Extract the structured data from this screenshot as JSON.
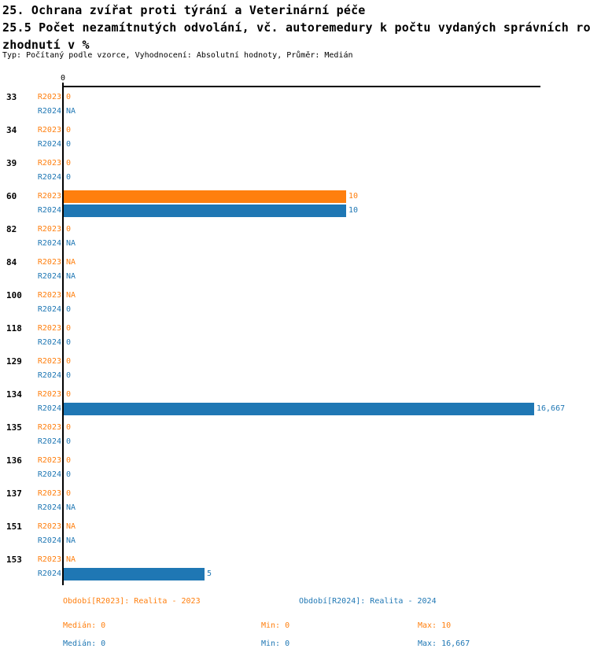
{
  "header": {
    "title_line1": "25. Ochrana zvířat proti týrání a Veterinární péče",
    "title_line2": "25.5 Počet nezamítnutých odvolání, vč. autoremedury k počtu vydaných správních ro",
    "title_line3": "zhodnutí v %",
    "meta": "Typ: Počítaný podle vzorce, Vyhodnocení: Absolutní hodnoty, Průměr: Medián"
  },
  "colors": {
    "r2023": "#ff7f0e",
    "r2024": "#1f77b4",
    "axis": "#000000"
  },
  "chart_data": {
    "type": "bar",
    "orientation": "horizontal",
    "title": "25.5 Počet nezamítnutých odvolání, vč. autoremedury k počtu vydaných správních rozhodnutí v %",
    "top_axis_tick_label": "0",
    "xlim": [
      0,
      16.9
    ],
    "grid": false,
    "categories": [
      "33",
      "34",
      "39",
      "60",
      "82",
      "84",
      "100",
      "118",
      "129",
      "134",
      "135",
      "136",
      "137",
      "151",
      "153"
    ],
    "series": [
      {
        "name": "R2023",
        "color": "#ff7f0e",
        "values": [
          0,
          0,
          0,
          10,
          0,
          null,
          null,
          0,
          0,
          0,
          0,
          0,
          0,
          null,
          null
        ],
        "labels": [
          "0",
          "0",
          "0",
          "10",
          "0",
          "NA",
          "NA",
          "0",
          "0",
          "0",
          "0",
          "0",
          "0",
          "NA",
          "NA"
        ]
      },
      {
        "name": "R2024",
        "color": "#1f77b4",
        "values": [
          null,
          0,
          0,
          10,
          null,
          null,
          0,
          0,
          0,
          16.667,
          0,
          0,
          null,
          null,
          5
        ],
        "labels": [
          "NA",
          "0",
          "0",
          "10",
          "NA",
          "NA",
          "0",
          "0",
          "0",
          "16,667",
          "0",
          "0",
          "NA",
          "NA",
          "5"
        ]
      }
    ],
    "legend": [
      {
        "label": "Období[R2023]: Realita - 2023",
        "color": "#ff7f0e"
      },
      {
        "label": "Období[R2024]: Realita - 2024",
        "color": "#1f77b4"
      }
    ],
    "stats": [
      {
        "median_label": "Medián: 0",
        "min_label": "Min: 0",
        "max_label": "Max: 10",
        "color": "#ff7f0e"
      },
      {
        "median_label": "Medián: 0",
        "min_label": "Min: 0",
        "max_label": "Max: 16,667",
        "color": "#1f77b4"
      }
    ]
  }
}
